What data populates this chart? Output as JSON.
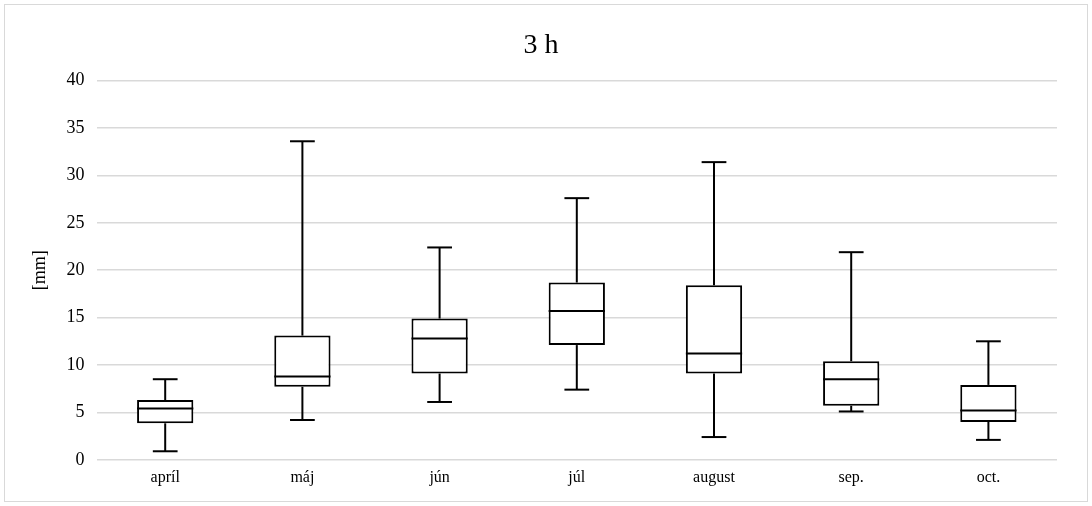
{
  "chart_data": {
    "type": "box",
    "title": "3 h",
    "ylabel": "[mm]",
    "categories": [
      "apríl",
      "máj",
      "jún",
      "júl",
      "august",
      "sep.",
      "oct."
    ],
    "boxes": [
      {
        "low": 0.9,
        "q1": 3.85,
        "median": 5.4,
        "q3": 6.3,
        "high": 8.5
      },
      {
        "low": 4.2,
        "q1": 7.7,
        "median": 8.8,
        "q3": 13.1,
        "high": 33.6
      },
      {
        "low": 6.1,
        "q1": 9.1,
        "median": 12.8,
        "q3": 14.9,
        "high": 22.4
      },
      {
        "low": 7.4,
        "q1": 12.1,
        "median": 15.7,
        "q3": 18.7,
        "high": 27.6
      },
      {
        "low": 2.4,
        "q1": 9.1,
        "median": 11.2,
        "q3": 18.4,
        "high": 31.4
      },
      {
        "low": 5.1,
        "q1": 5.7,
        "median": 8.5,
        "q3": 10.4,
        "high": 21.9
      },
      {
        "low": 2.1,
        "q1": 4.0,
        "median": 5.2,
        "q3": 7.9,
        "high": 12.5
      }
    ],
    "color": "#000000",
    "ylim": [
      0,
      40
    ],
    "yticks": [
      0,
      5,
      10,
      15,
      20,
      25,
      30,
      35,
      40
    ],
    "grid": "y"
  }
}
